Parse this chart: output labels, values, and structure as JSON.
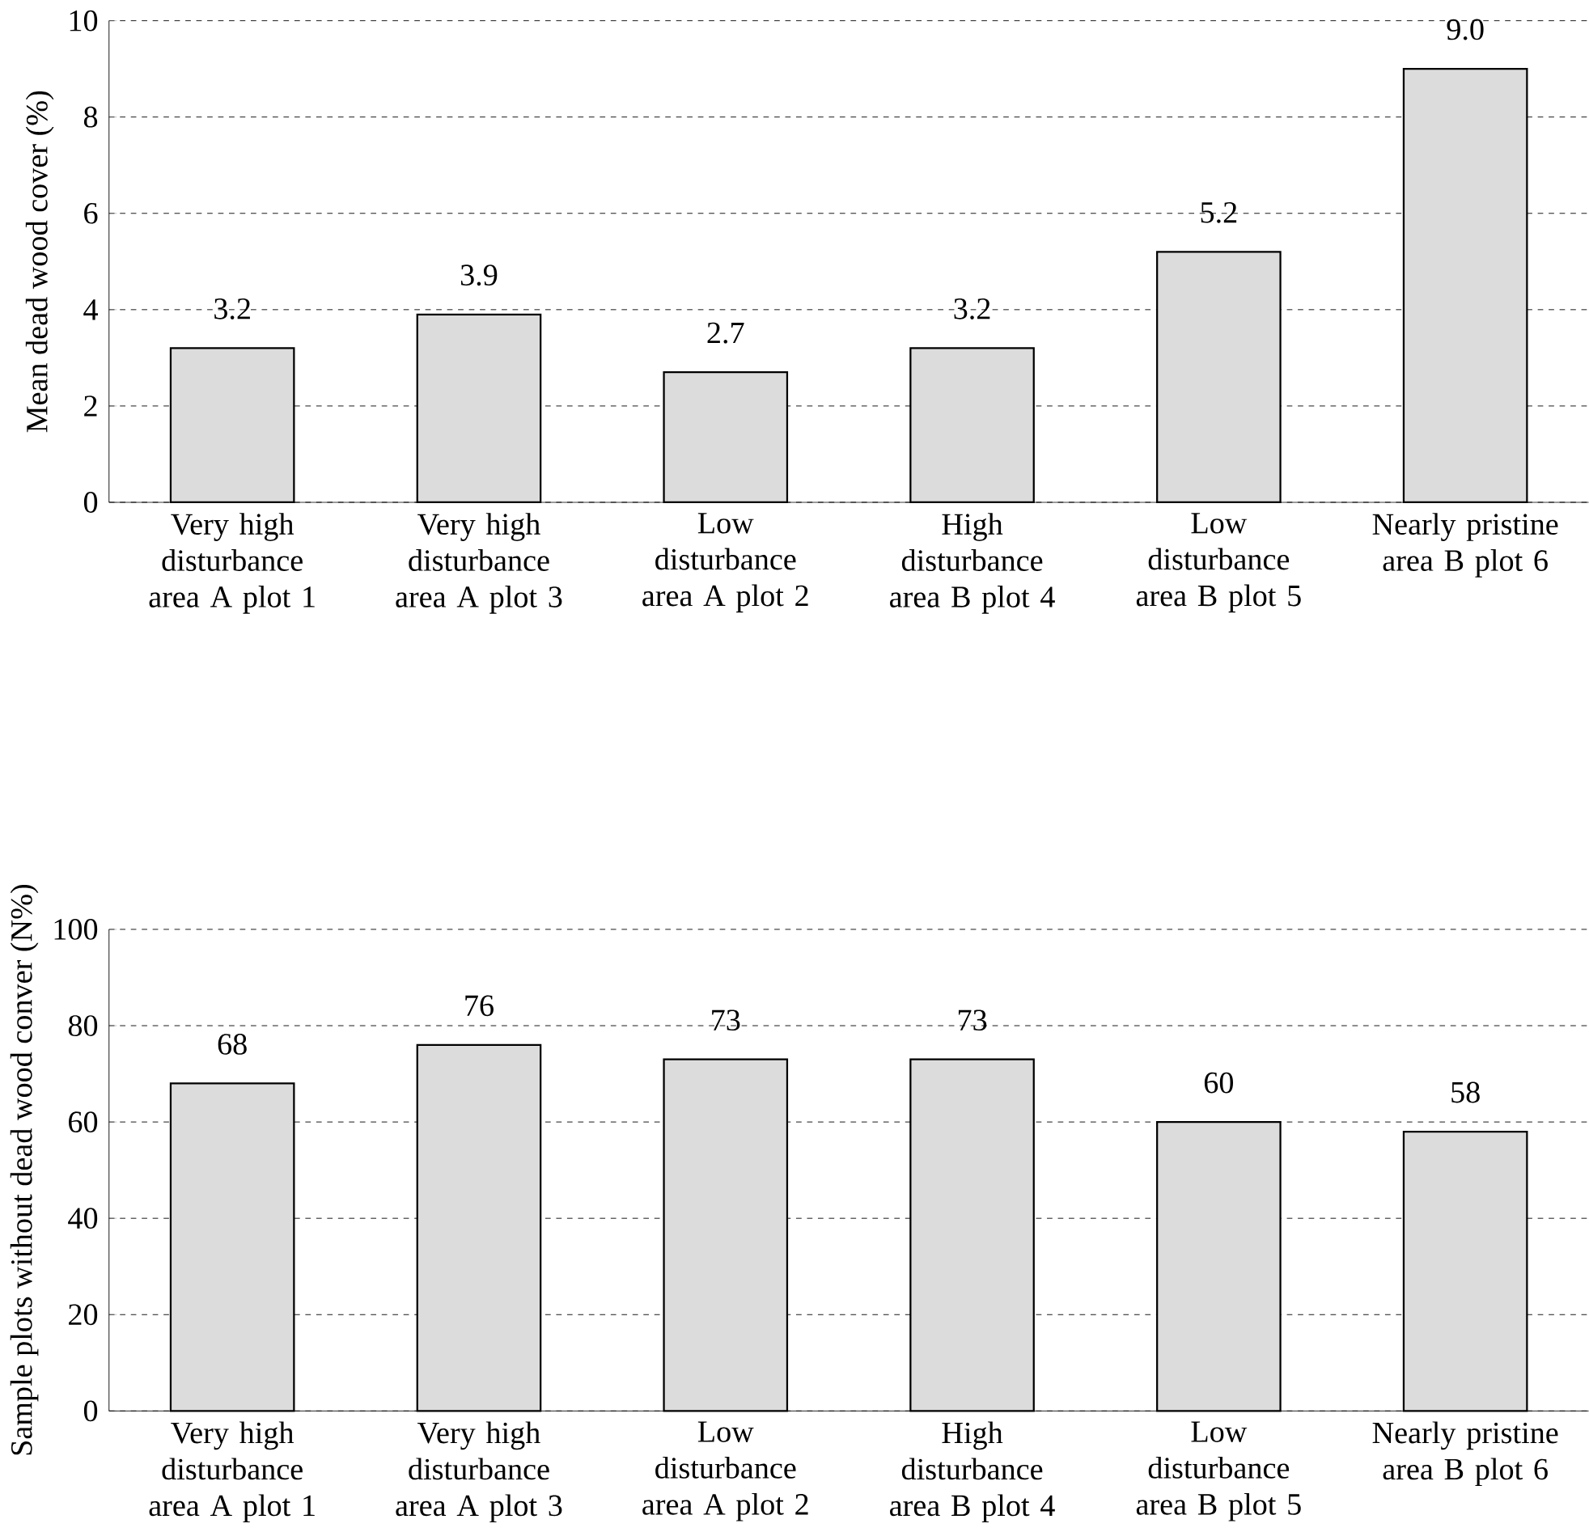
{
  "chart_data": [
    {
      "type": "bar",
      "ylabel": "Mean dead wood cover (%)",
      "categories": [
        "Very high disturbance area A plot 1",
        "Very high disturbance area A plot 3",
        "Low disturbance area A plot 2",
        "High disturbance area B plot 4",
        "Low disturbance area B plot 5",
        "Nearly pristine area B plot 6"
      ],
      "values": [
        3.2,
        3.9,
        2.7,
        3.2,
        5.2,
        9.0
      ],
      "value_labels": [
        "3.2",
        "3.9",
        "2.7",
        "3.2",
        "5.2",
        "9.0"
      ],
      "color": "#dcdcdc",
      "ylim": [
        0,
        10
      ],
      "yticks": [
        0,
        2,
        4,
        6,
        8,
        10
      ],
      "grid": "y"
    },
    {
      "type": "bar",
      "ylabel": "Sample plots without dead wood conver (N%)",
      "categories": [
        "Very high disturbance area A plot 1",
        "Very high disturbance area A plot 3",
        "Low disturbance area A plot 2",
        "High disturbance area B plot 4",
        "Low disturbance area B plot 5",
        "Nearly pristine area B plot 6"
      ],
      "values": [
        68,
        76,
        73,
        73,
        60,
        58
      ],
      "value_labels": [
        "68",
        "76",
        "73",
        "73",
        "60",
        "58"
      ],
      "color": "#dcdcdc",
      "ylim": [
        0,
        100
      ],
      "yticks": [
        0,
        20,
        40,
        60,
        80,
        100
      ],
      "grid": "y"
    }
  ]
}
